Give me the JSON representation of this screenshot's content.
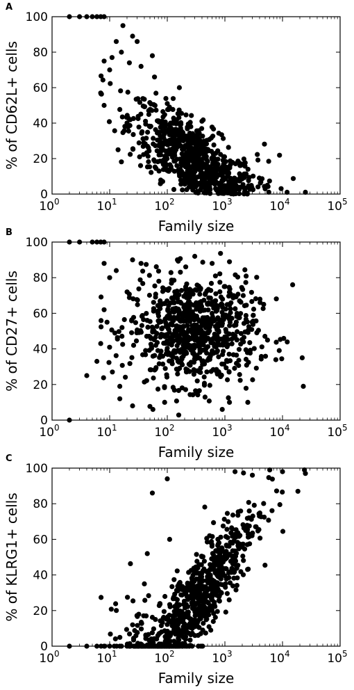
{
  "figure": {
    "panels": [
      {
        "letter": "A",
        "ylabel": "% of CD62L+ cells",
        "xlabel": "Family size"
      },
      {
        "letter": "B",
        "ylabel": "% of CD27+ cells",
        "xlabel": "Family size"
      },
      {
        "letter": "C",
        "ylabel": "% of KLRG1+ cells",
        "xlabel": "Family size"
      }
    ],
    "x_tick_base": "10",
    "x_tick_exponents": [
      "0",
      "1",
      "2",
      "3",
      "4",
      "5"
    ],
    "y_ticks": [
      "0",
      "20",
      "40",
      "60",
      "80",
      "100"
    ],
    "marker_color": "#000000"
  },
  "chart_data": [
    {
      "type": "scatter",
      "panel": "A",
      "xlabel": "Family size",
      "ylabel": "% of CD62L+ cells",
      "x_scale": "log",
      "xlim": [
        1,
        100000
      ],
      "ylim": [
        0,
        100
      ],
      "grid": false,
      "highlighted_points": [
        {
          "x": 2,
          "y": 100
        },
        {
          "x": 3,
          "y": 100
        },
        {
          "x": 4,
          "y": 100
        },
        {
          "x": 5,
          "y": 100
        },
        {
          "x": 6,
          "y": 100
        },
        {
          "x": 7,
          "y": 100
        },
        {
          "x": 8,
          "y": 100
        },
        {
          "x": 7,
          "y": 57
        },
        {
          "x": 8,
          "y": 50
        },
        {
          "x": 8,
          "y": 75
        },
        {
          "x": 10,
          "y": 70
        },
        {
          "x": 11,
          "y": 77
        },
        {
          "x": 13,
          "y": 86
        },
        {
          "x": 14,
          "y": 25
        },
        {
          "x": 17,
          "y": 95
        },
        {
          "x": 16,
          "y": 80
        },
        {
          "x": 22,
          "y": 74
        },
        {
          "x": 25,
          "y": 89
        },
        {
          "x": 30,
          "y": 86
        },
        {
          "x": 35,
          "y": 72
        },
        {
          "x": 55,
          "y": 78
        },
        {
          "x": 60,
          "y": 66
        },
        {
          "x": 100,
          "y": 51
        },
        {
          "x": 130,
          "y": 41
        },
        {
          "x": 250,
          "y": 34
        },
        {
          "x": 650,
          "y": 18
        },
        {
          "x": 1500,
          "y": 8
        },
        {
          "x": 5000,
          "y": 3
        },
        {
          "x": 12000,
          "y": 1
        },
        {
          "x": 25000,
          "y": 1
        }
      ],
      "point_cloud": {
        "n": 780,
        "x_range": [
          7,
          25000
        ],
        "y_range": [
          0,
          100
        ],
        "trend": "percentage falls from ~100% at small family sizes toward ~0% at large family sizes"
      }
    },
    {
      "type": "scatter",
      "panel": "B",
      "xlabel": "Family size",
      "ylabel": "% of CD27+ cells",
      "x_scale": "log",
      "xlim": [
        1,
        100000
      ],
      "ylim": [
        0,
        100
      ],
      "grid": false,
      "highlighted_points": [
        {
          "x": 2,
          "y": 100
        },
        {
          "x": 2,
          "y": 0
        },
        {
          "x": 3,
          "y": 100
        },
        {
          "x": 5,
          "y": 100
        },
        {
          "x": 6,
          "y": 100
        },
        {
          "x": 7,
          "y": 100
        },
        {
          "x": 8,
          "y": 100
        },
        {
          "x": 4,
          "y": 25
        },
        {
          "x": 6,
          "y": 33
        },
        {
          "x": 7,
          "y": 43
        },
        {
          "x": 8,
          "y": 88
        },
        {
          "x": 8,
          "y": 62
        },
        {
          "x": 9,
          "y": 55
        },
        {
          "x": 10,
          "y": 80
        },
        {
          "x": 13,
          "y": 84
        },
        {
          "x": 15,
          "y": 12
        },
        {
          "x": 15,
          "y": 19
        },
        {
          "x": 25,
          "y": 8
        },
        {
          "x": 25,
          "y": 90
        },
        {
          "x": 35,
          "y": 88
        },
        {
          "x": 90,
          "y": 10
        },
        {
          "x": 150,
          "y": 90
        },
        {
          "x": 300,
          "y": 92
        },
        {
          "x": 600,
          "y": 88
        },
        {
          "x": 900,
          "y": 6
        },
        {
          "x": 1200,
          "y": 10
        },
        {
          "x": 2500,
          "y": 10
        },
        {
          "x": 15000,
          "y": 76
        },
        {
          "x": 22000,
          "y": 35
        },
        {
          "x": 23000,
          "y": 19
        }
      ],
      "point_cloud": {
        "n": 780,
        "x_range": [
          4,
          25000
        ],
        "y_range": [
          6,
          92
        ],
        "trend": "no clear dependence on family size; values centred near 50%"
      }
    },
    {
      "type": "scatter",
      "panel": "C",
      "xlabel": "Family size",
      "ylabel": "% of KLRG1+ cells",
      "x_scale": "log",
      "xlim": [
        1,
        100000
      ],
      "ylim": [
        0,
        100
      ],
      "grid": false,
      "highlighted_points": [
        {
          "x": 2,
          "y": 0
        },
        {
          "x": 4,
          "y": 0
        },
        {
          "x": 6,
          "y": 0
        },
        {
          "x": 8,
          "y": 0
        },
        {
          "x": 10,
          "y": 0
        },
        {
          "x": 12,
          "y": 0
        },
        {
          "x": 15,
          "y": 0
        },
        {
          "x": 20,
          "y": 0
        },
        {
          "x": 30,
          "y": 0
        },
        {
          "x": 40,
          "y": 0
        },
        {
          "x": 60,
          "y": 0
        },
        {
          "x": 90,
          "y": 0
        },
        {
          "x": 55,
          "y": 86
        },
        {
          "x": 100,
          "y": 94
        },
        {
          "x": 110,
          "y": 60
        },
        {
          "x": 25,
          "y": 12
        },
        {
          "x": 40,
          "y": 35
        },
        {
          "x": 45,
          "y": 52
        },
        {
          "x": 1500,
          "y": 98
        },
        {
          "x": 3000,
          "y": 96
        },
        {
          "x": 6000,
          "y": 99
        },
        {
          "x": 10000,
          "y": 98
        },
        {
          "x": 24000,
          "y": 99
        },
        {
          "x": 25000,
          "y": 97
        }
      ],
      "point_cloud": {
        "n": 780,
        "x_range": [
          2,
          25000
        ],
        "y_range": [
          0,
          99
        ],
        "trend": "percentage rises from ~0% at small family sizes toward ~100% at large family sizes"
      }
    }
  ]
}
